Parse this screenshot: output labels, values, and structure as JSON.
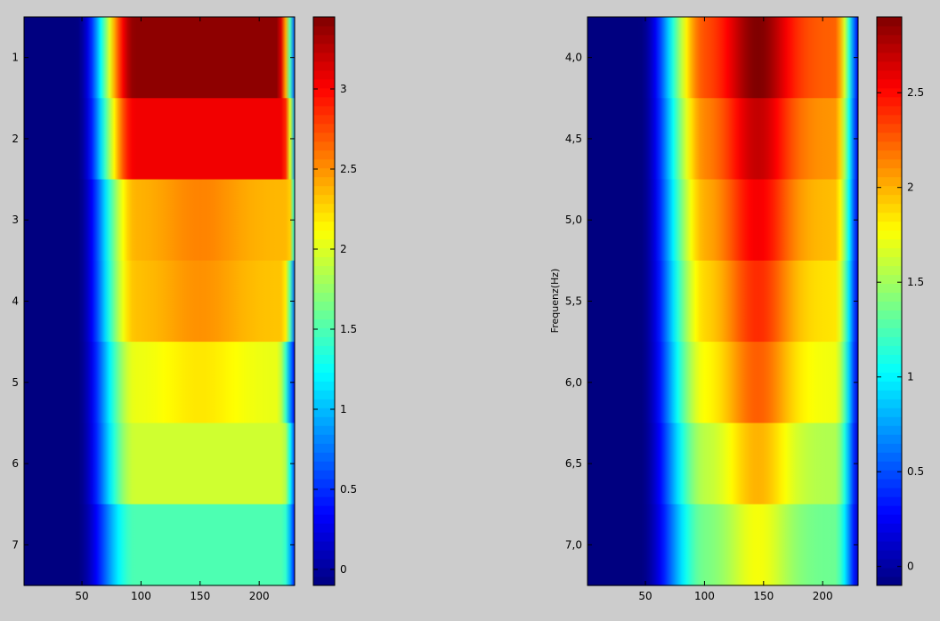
{
  "chart_data": [
    {
      "type": "heatmap",
      "colormap": "jet",
      "x_ticks": [
        50,
        100,
        150,
        200
      ],
      "x_range": [
        1,
        230
      ],
      "y_ticks": [
        "1",
        "2",
        "3",
        "4",
        "5",
        "6",
        "7"
      ],
      "y_range": [
        0.5,
        7.5
      ],
      "ylabel": "",
      "colorbar": {
        "ticks": [
          "0",
          "0.5",
          "1",
          "1.5",
          "2",
          "2.5",
          "3"
        ],
        "ticks_values": [
          0,
          0.5,
          1,
          1.5,
          2,
          2.5,
          3
        ],
        "range": [
          -0.1,
          3.45
        ]
      },
      "rows": [
        {
          "label": "1",
          "peak": 3.4,
          "plateau_start": 95,
          "plateau_end": 215,
          "profile": "flat"
        },
        {
          "label": "2",
          "peak": 3.05,
          "plateau_start": 95,
          "plateau_end": 220,
          "profile": "flat"
        },
        {
          "label": "3",
          "peak": 2.55,
          "plateau_start": 95,
          "plateau_end": 225,
          "profile": "bump"
        },
        {
          "label": "4",
          "peak": 2.5,
          "plateau_start": 95,
          "plateau_end": 220,
          "profile": "bump"
        },
        {
          "label": "5",
          "peak": 2.2,
          "plateau_start": 95,
          "plateau_end": 215,
          "profile": "bump"
        },
        {
          "label": "6",
          "peak": 1.95,
          "plateau_start": 95,
          "plateau_end": 220,
          "profile": "flat"
        },
        {
          "label": "7",
          "peak": 1.5,
          "plateau_start": 95,
          "plateau_end": 220,
          "profile": "flat"
        }
      ]
    },
    {
      "type": "heatmap",
      "colormap": "jet",
      "x_ticks": [
        50,
        100,
        150,
        200
      ],
      "x_range": [
        1,
        230
      ],
      "y_ticks": [
        "4,0",
        "4,5",
        "5,0",
        "5,5",
        "6,0",
        "6,5",
        "7,0"
      ],
      "y_range": [
        3.75,
        7.25
      ],
      "ylabel": "Frequenz(Hz)",
      "colorbar": {
        "ticks": [
          "0",
          "0.5",
          "1",
          "1.5",
          "2",
          "2.5"
        ],
        "ticks_values": [
          0,
          0.5,
          1,
          1.5,
          2,
          2.5
        ],
        "range": [
          -0.1,
          2.9
        ]
      },
      "rows": [
        {
          "label": "4,0",
          "peak": 2.9,
          "plateau_start": 100,
          "plateau_end": 210,
          "profile": "peak"
        },
        {
          "label": "4,5",
          "peak": 2.7,
          "plateau_start": 100,
          "plateau_end": 210,
          "profile": "peak"
        },
        {
          "label": "5,0",
          "peak": 2.55,
          "plateau_start": 100,
          "plateau_end": 210,
          "profile": "peak"
        },
        {
          "label": "5,5",
          "peak": 2.4,
          "plateau_start": 100,
          "plateau_end": 210,
          "profile": "peak"
        },
        {
          "label": "6,0",
          "peak": 2.25,
          "plateau_start": 100,
          "plateau_end": 210,
          "profile": "peak"
        },
        {
          "label": "6,5",
          "peak": 2.0,
          "plateau_start": 100,
          "plateau_end": 210,
          "profile": "peak"
        },
        {
          "label": "7,0",
          "peak": 1.75,
          "plateau_start": 100,
          "plateau_end": 210,
          "profile": "peak"
        }
      ]
    }
  ]
}
